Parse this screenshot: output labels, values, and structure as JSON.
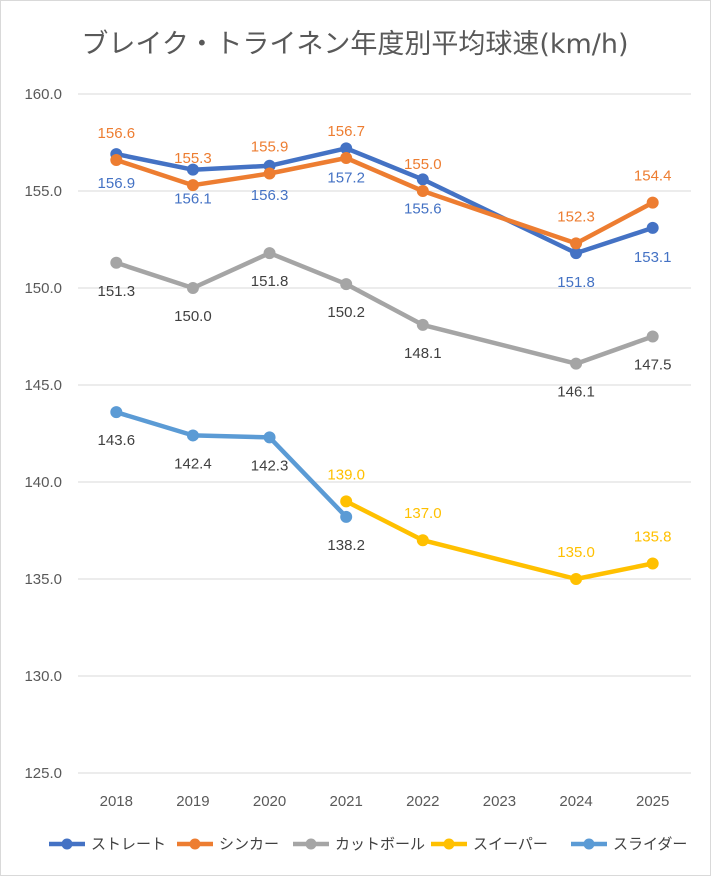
{
  "chart_data": {
    "type": "line",
    "title": "ブレイク・トライネン年度別平均球速(km/h)",
    "categories": [
      "2018",
      "2019",
      "2020",
      "2021",
      "2022",
      "2023",
      "2024",
      "2025"
    ],
    "ylim": [
      125.0,
      160.0
    ],
    "yticks": [
      "125.0",
      "130.0",
      "135.0",
      "140.0",
      "145.0",
      "150.0",
      "155.0",
      "160.0"
    ],
    "grid": true,
    "legend_position": "bottom",
    "series": [
      {
        "name": "ストレート",
        "color": "#4472C4",
        "values": [
          156.9,
          156.1,
          156.3,
          157.2,
          155.6,
          null,
          151.8,
          153.1
        ]
      },
      {
        "name": "シンカー",
        "color": "#ED7D31",
        "values": [
          156.6,
          155.3,
          155.9,
          156.7,
          155.0,
          null,
          152.3,
          154.4
        ]
      },
      {
        "name": "カットボール",
        "color": "#A5A5A5",
        "values": [
          151.3,
          150.0,
          151.8,
          150.2,
          148.1,
          null,
          146.1,
          147.5
        ]
      },
      {
        "name": "スイーパー",
        "color": "#FFC000",
        "values": [
          null,
          null,
          null,
          139.0,
          137.0,
          null,
          135.0,
          135.8
        ]
      },
      {
        "name": "スライダー",
        "color": "#5B9BD5",
        "values": [
          143.6,
          142.4,
          142.3,
          138.2,
          null,
          null,
          null,
          null
        ]
      }
    ],
    "data_label_colors": {
      "ストレート": "#4472C4",
      "シンカー": "#ED7D31",
      "カットボール": "#404040",
      "スイーパー": "#FFC000",
      "スライダー": "#404040"
    }
  }
}
